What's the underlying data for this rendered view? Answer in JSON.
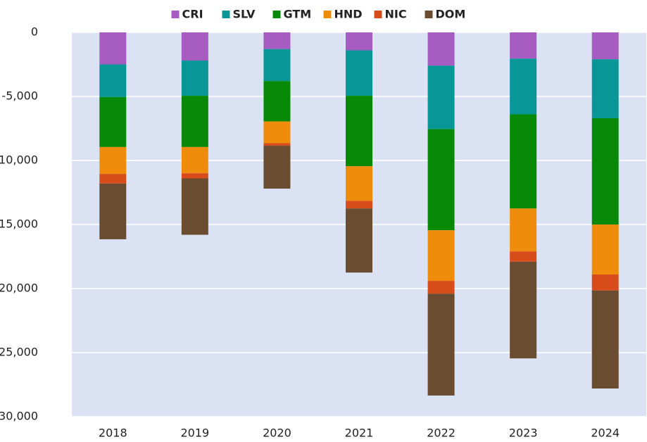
{
  "chart_data": {
    "type": "stacked_bar",
    "categories": [
      "2018",
      "2019",
      "2020",
      "2021",
      "2022",
      "2023",
      "2024"
    ],
    "series": [
      {
        "name": "CRI",
        "color": "#a65cc0",
        "values": [
          -2500,
          -2200,
          -1300,
          -1400,
          -2600,
          -2050,
          -2100
        ]
      },
      {
        "name": "SLV",
        "color": "#089696",
        "values": [
          -2550,
          -2750,
          -2500,
          -3550,
          -4950,
          -4350,
          -4600
        ]
      },
      {
        "name": "GTM",
        "color": "#088a08",
        "values": [
          -3900,
          -4000,
          -3150,
          -5500,
          -7900,
          -7350,
          -8300
        ]
      },
      {
        "name": "HND",
        "color": "#f08c0c",
        "values": [
          -2100,
          -2050,
          -1700,
          -2700,
          -3950,
          -3350,
          -3900
        ]
      },
      {
        "name": "NIC",
        "color": "#d84c1c",
        "values": [
          -750,
          -400,
          -200,
          -600,
          -1000,
          -800,
          -1250
        ]
      },
      {
        "name": "DOM",
        "color": "#6a4c30",
        "values": [
          -4350,
          -4400,
          -3350,
          -5000,
          -7950,
          -7550,
          -7650
        ]
      }
    ],
    "ylim": [
      -30000,
      0
    ],
    "yticks": [
      0,
      {
        "value": -5000,
        "label": "-5,000"
      },
      {
        "value": -10000,
        "label": "-10,000"
      },
      {
        "value": -15000,
        "label": "-15,000"
      },
      {
        "value": -20000,
        "label": "-20,000"
      },
      {
        "value": -25000,
        "label": "-25,000"
      },
      {
        "value": -30000,
        "label": "-30,000"
      }
    ],
    "grid": true,
    "legend": "top"
  }
}
